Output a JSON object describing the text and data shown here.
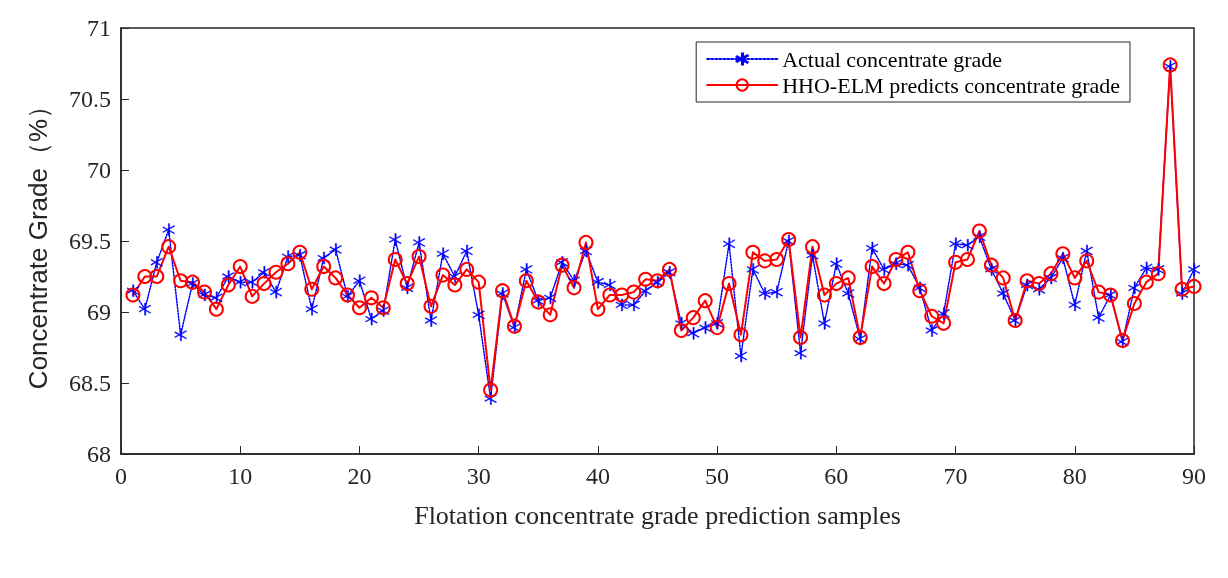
{
  "chart_data": {
    "type": "line",
    "xlabel": "Flotation concentrate grade prediction samples",
    "ylabel": "Concentrate Grade（%）",
    "x": [
      1,
      2,
      3,
      4,
      5,
      6,
      7,
      8,
      9,
      10,
      11,
      12,
      13,
      14,
      15,
      16,
      17,
      18,
      19,
      20,
      21,
      22,
      23,
      24,
      25,
      26,
      27,
      28,
      29,
      30,
      31,
      32,
      33,
      34,
      35,
      36,
      37,
      38,
      39,
      40,
      41,
      42,
      43,
      44,
      45,
      46,
      47,
      48,
      49,
      50,
      51,
      52,
      53,
      54,
      55,
      56,
      57,
      58,
      59,
      60,
      61,
      62,
      63,
      64,
      65,
      66,
      67,
      68,
      69,
      70,
      71,
      72,
      73,
      74,
      75,
      76,
      77,
      78,
      79,
      80,
      81,
      82,
      83,
      84,
      85,
      86,
      87,
      88,
      89,
      90
    ],
    "series": [
      {
        "name": "Actual concentrate grade",
        "color": "#0000ff",
        "marker": "star",
        "line_style": "dotted",
        "values": [
          69.15,
          69.02,
          69.35,
          69.58,
          68.84,
          69.2,
          69.12,
          69.1,
          69.25,
          69.21,
          69.21,
          69.28,
          69.14,
          69.39,
          69.4,
          69.02,
          69.38,
          69.44,
          69.11,
          69.22,
          68.95,
          69.01,
          69.51,
          69.17,
          69.49,
          68.94,
          69.41,
          69.25,
          69.43,
          68.98,
          68.39,
          69.13,
          68.89,
          69.3,
          69.08,
          69.1,
          69.35,
          69.22,
          69.43,
          69.21,
          69.19,
          69.05,
          69.05,
          69.15,
          69.21,
          69.28,
          68.92,
          68.85,
          68.89,
          68.92,
          69.48,
          68.69,
          69.3,
          69.13,
          69.14,
          69.5,
          68.71,
          69.4,
          68.92,
          69.34,
          69.13,
          68.81,
          69.45,
          69.3,
          69.34,
          69.33,
          69.17,
          68.87,
          68.99,
          69.48,
          69.47,
          69.53,
          69.3,
          69.13,
          68.94,
          69.19,
          69.16,
          69.24,
          69.38,
          69.05,
          69.43,
          68.96,
          69.12,
          68.79,
          69.17,
          69.31,
          69.3,
          70.73,
          69.13,
          69.3
        ]
      },
      {
        "name": "HHO-ELM predicts concentrate grade",
        "color": "#ff0000",
        "marker": "circle",
        "line_style": "solid",
        "values": [
          69.12,
          69.25,
          69.25,
          69.46,
          69.22,
          69.21,
          69.14,
          69.02,
          69.19,
          69.32,
          69.11,
          69.2,
          69.28,
          69.34,
          69.42,
          69.16,
          69.32,
          69.24,
          69.12,
          69.03,
          69.1,
          69.03,
          69.37,
          69.2,
          69.39,
          69.04,
          69.26,
          69.19,
          69.3,
          69.21,
          68.45,
          69.15,
          68.9,
          69.22,
          69.07,
          68.98,
          69.33,
          69.17,
          69.49,
          69.02,
          69.12,
          69.12,
          69.14,
          69.23,
          69.22,
          69.3,
          68.87,
          68.96,
          69.08,
          68.89,
          69.2,
          68.84,
          69.42,
          69.36,
          69.37,
          69.51,
          68.82,
          69.46,
          69.12,
          69.2,
          69.24,
          68.82,
          69.32,
          69.2,
          69.37,
          69.42,
          69.15,
          68.97,
          68.92,
          69.35,
          69.37,
          69.57,
          69.33,
          69.24,
          68.94,
          69.22,
          69.2,
          69.27,
          69.41,
          69.24,
          69.36,
          69.14,
          69.12,
          68.8,
          69.06,
          69.21,
          69.27,
          70.74,
          69.16,
          69.18
        ]
      }
    ],
    "xlim": [
      0,
      90
    ],
    "xticks": [
      0,
      10,
      20,
      30,
      40,
      50,
      60,
      70,
      80,
      90
    ],
    "ylim": [
      68,
      71
    ],
    "yticks": [
      68,
      68.5,
      69,
      69.5,
      70,
      70.5,
      71
    ],
    "grid": false,
    "legend": "top right"
  }
}
